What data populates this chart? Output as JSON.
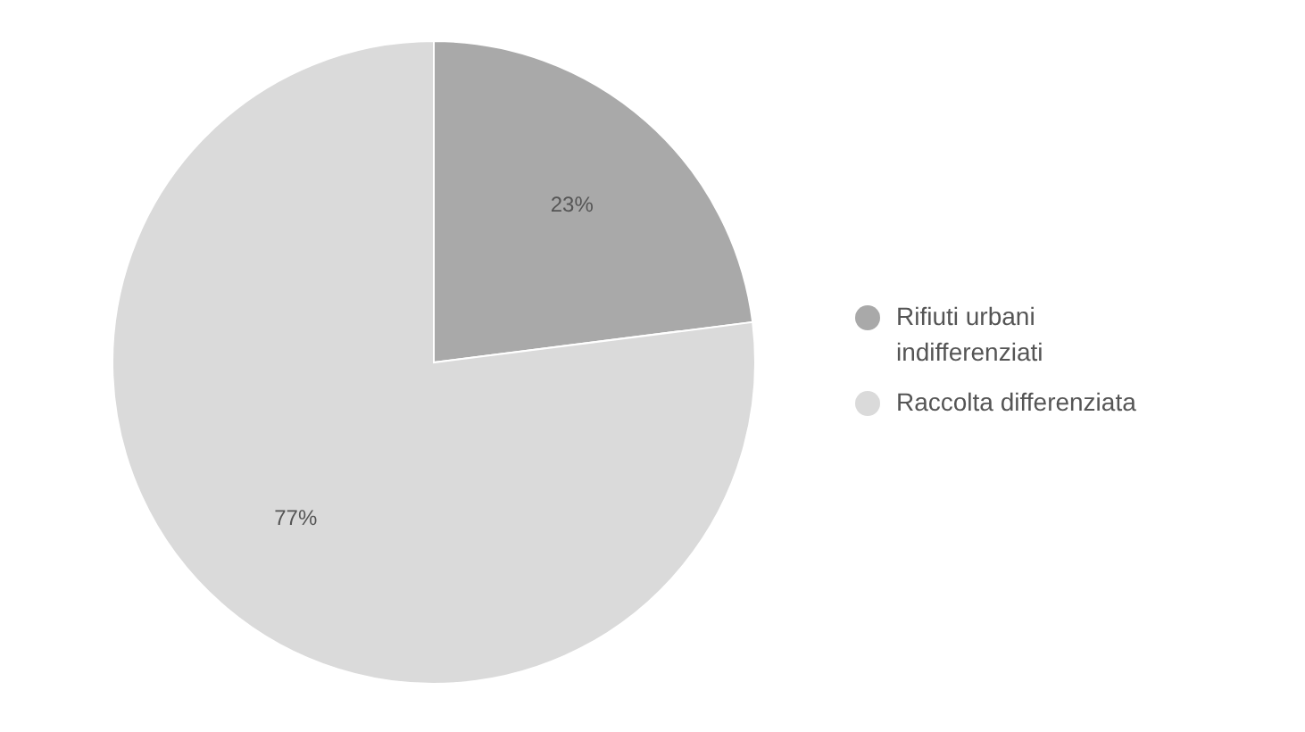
{
  "chart_data": {
    "type": "pie",
    "categories": [
      "Rifiuti urbani indifferenziati",
      "Raccolta differenziata"
    ],
    "values": [
      23,
      77
    ],
    "value_labels": [
      "23%",
      "77%"
    ],
    "colors": [
      "#a9a9a9",
      "#dadada"
    ],
    "legend": "right"
  }
}
